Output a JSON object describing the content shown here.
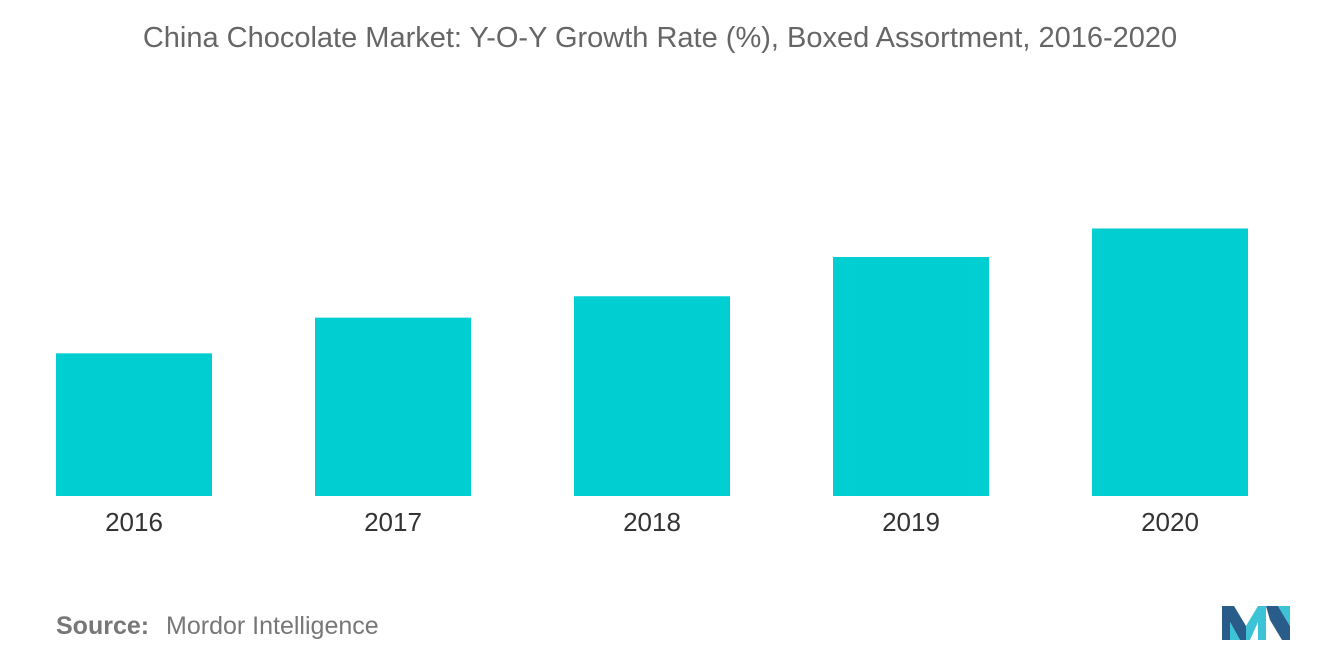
{
  "chart_data": {
    "type": "bar",
    "title": "China Chocolate Market: Y-O-Y Growth Rate (%), Boxed Assortment, 2016-2020",
    "categories": [
      "2016",
      "2017",
      "2018",
      "2019",
      "2020"
    ],
    "values": [
      2.0,
      2.5,
      2.8,
      3.35,
      3.75
    ],
    "xlabel": "",
    "ylabel": "",
    "ylim": [
      0,
      6
    ],
    "grid": false,
    "legend": "none",
    "colors": {
      "bar": "#00CED1"
    }
  },
  "source": {
    "label": "Source:",
    "value": "Mordor Intelligence"
  },
  "logo": {
    "icon": "mordor-intelligence-logo-icon",
    "colors": [
      "#2A5C8A",
      "#3CC3D6"
    ]
  }
}
